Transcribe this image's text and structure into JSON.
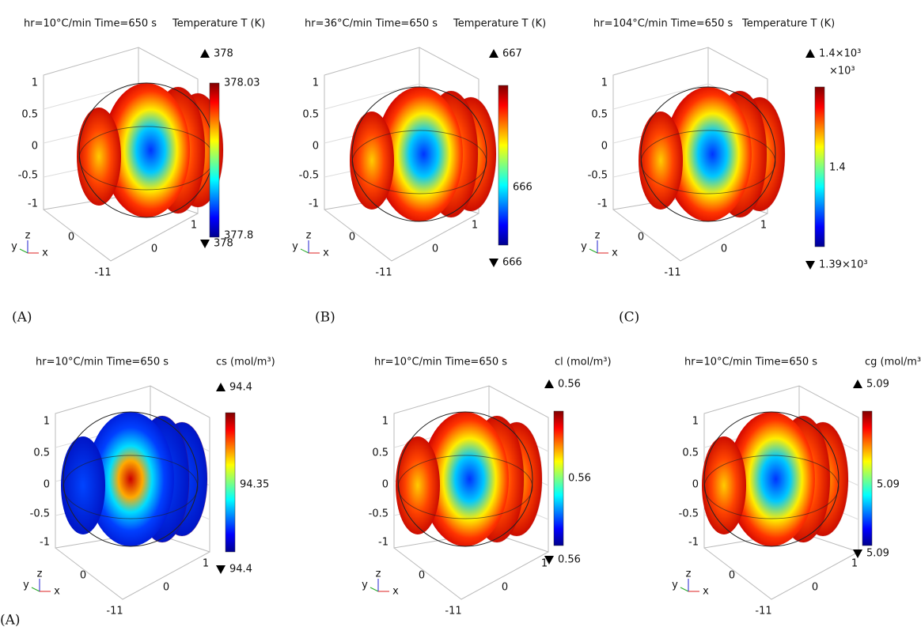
{
  "panels": [
    {
      "title": "hr=10°C/min Time=650 s",
      "quantity": "Temperature T (K)",
      "max": "378",
      "min": "378",
      "colorbar_labels": [
        "378.03",
        "377.8"
      ],
      "label": "(A)"
    },
    {
      "title": "hr=36°C/min Time=650 s",
      "quantity": "Temperature T (K)",
      "max": "667",
      "min": "666",
      "colorbar_labels": [
        "666"
      ],
      "label": "(B)"
    },
    {
      "title": "hr=104°C/min Time=650 s",
      "quantity": "Temperature T (K)",
      "max": "1.4×10³",
      "min": "1.39×10³",
      "colorbar_labels": [
        "×10³",
        "1.4"
      ],
      "label": "(C)"
    },
    {
      "title": "hr=10°C/min Time=650 s",
      "quantity": "cs (mol/m³)",
      "max": "94.4",
      "min": "94.4",
      "colorbar_labels": [
        "94.35"
      ],
      "label": "(A)"
    },
    {
      "title": "hr=10°C/min Time=650 s",
      "quantity": "cl (mol/m³)",
      "max": "0.56",
      "min": "0.56",
      "colorbar_labels": [
        "0.56"
      ]
    },
    {
      "title": "hr=10°C/min Time=650 s",
      "quantity": "cg (mol/m³)",
      "max": "5.09",
      "min": "5.09",
      "colorbar_labels": [
        "5.09"
      ]
    }
  ],
  "axes": {
    "z_ticks": [
      "1",
      "0.5",
      "0",
      "-0.5",
      "-1"
    ],
    "floor_ticks": [
      "1",
      "0",
      "0",
      "-11"
    ],
    "triad": [
      "y",
      "z",
      "x"
    ]
  }
}
